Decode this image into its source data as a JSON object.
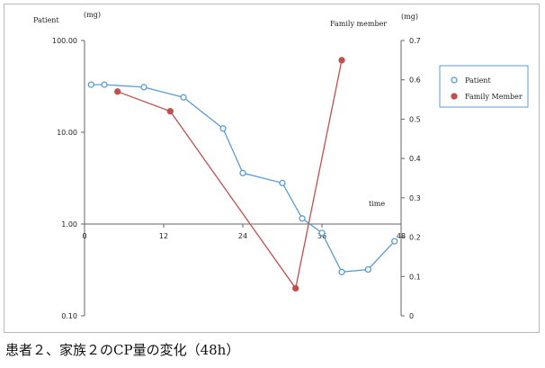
{
  "caption": "患者２、家族２のCP量の変化（48h）",
  "chart_data": {
    "type": "line",
    "left_axis": {
      "title": "Patient",
      "unit": "(mg)",
      "scale": "log",
      "range": [
        0.1,
        100
      ],
      "tick_values": [
        0.1,
        1,
        10,
        100
      ],
      "tick_labels": [
        "0.10",
        "1.00",
        "10.00",
        "100.00"
      ]
    },
    "right_axis": {
      "title": "Family member",
      "unit": "(mg)",
      "scale": "linear",
      "range": [
        0,
        0.7
      ],
      "tick_values": [
        0,
        0.1,
        0.2,
        0.3,
        0.4,
        0.5,
        0.6,
        0.7
      ],
      "tick_labels": [
        "0",
        "0.1",
        "0.2",
        "0.3",
        "0.4",
        "0.5",
        "0.6",
        "0.7"
      ]
    },
    "x_axis": {
      "title": "time",
      "range": [
        0,
        48
      ],
      "tick_values": [
        0,
        12,
        24,
        36,
        48
      ],
      "tick_labels": [
        "0",
        "12",
        "24",
        "36",
        "48"
      ]
    },
    "series": [
      {
        "name": "Patient",
        "axis": "left",
        "color": "#5b9bd5",
        "marker": "open-circle",
        "points": [
          [
            1,
            33
          ],
          [
            3,
            33
          ],
          [
            9,
            31
          ],
          [
            15,
            24
          ],
          [
            21,
            11
          ],
          [
            24,
            3.6
          ],
          [
            30,
            2.8
          ],
          [
            33,
            1.15
          ],
          [
            36,
            0.8
          ],
          [
            39,
            0.3
          ],
          [
            43,
            0.32
          ],
          [
            47,
            0.65
          ]
        ]
      },
      {
        "name": "Family Member",
        "axis": "right",
        "color": "#c0504d",
        "marker": "filled-circle",
        "points": [
          [
            5,
            0.57
          ],
          [
            13,
            0.52
          ],
          [
            32,
            0.07
          ],
          [
            39,
            0.65
          ]
        ]
      }
    ],
    "legend": {
      "position": "right",
      "entries": [
        "Patient",
        "Family Member"
      ]
    },
    "grid": false
  }
}
